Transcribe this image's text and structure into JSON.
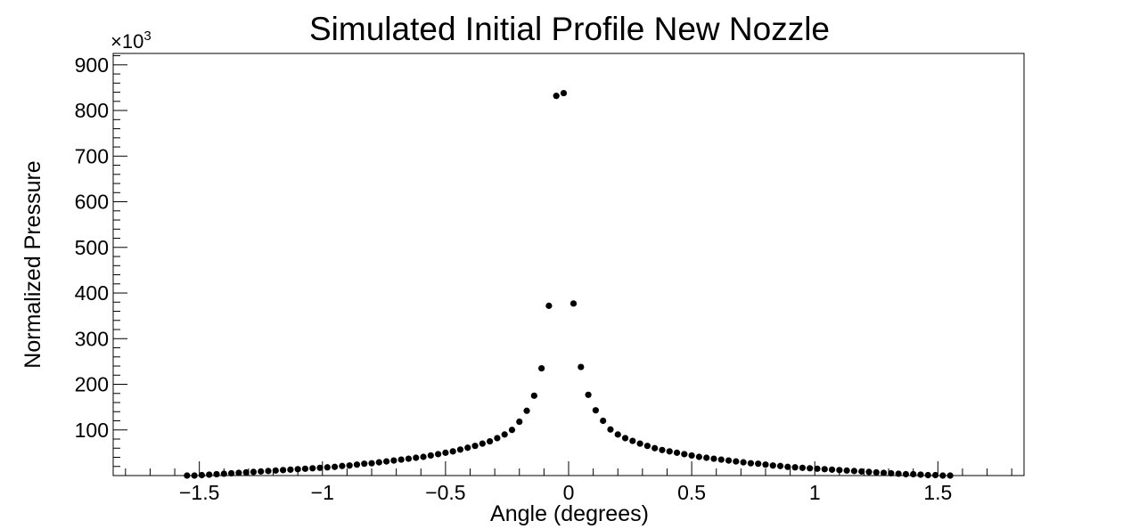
{
  "chart_data": {
    "type": "scatter",
    "title": "Simulated Initial Profile New Nozzle",
    "xlabel": "Angle (degrees)",
    "ylabel": "Normalized Pressure",
    "y_multiplier_label": "×10",
    "y_multiplier_exponent": "3",
    "xlim": [
      -1.85,
      1.85
    ],
    "ylim": [
      0,
      925
    ],
    "x_ticks": [
      -1.5,
      -1,
      -0.5,
      0,
      0.5,
      1,
      1.5
    ],
    "x_tick_labels": [
      "−1.5",
      "−1",
      "−0.5",
      "0",
      "0.5",
      "1",
      "1.5"
    ],
    "y_ticks": [
      100,
      200,
      300,
      400,
      500,
      600,
      700,
      800,
      900
    ],
    "y_tick_labels": [
      "100",
      "200",
      "300",
      "400",
      "500",
      "600",
      "700",
      "800",
      "900"
    ],
    "grid": false,
    "marker_color": "#000000",
    "series": [
      {
        "x": [
          -1.55,
          -1.52,
          -1.49,
          -1.46,
          -1.43,
          -1.4,
          -1.37,
          -1.34,
          -1.31,
          -1.28,
          -1.25,
          -1.22,
          -1.19,
          -1.16,
          -1.13,
          -1.1,
          -1.07,
          -1.04,
          -1.01,
          -0.98,
          -0.95,
          -0.92,
          -0.89,
          -0.86,
          -0.83,
          -0.8,
          -0.77,
          -0.74,
          -0.71,
          -0.68,
          -0.65,
          -0.62,
          -0.59,
          -0.56,
          -0.53,
          -0.5,
          -0.47,
          -0.44,
          -0.41,
          -0.38,
          -0.35,
          -0.32,
          -0.29,
          -0.26,
          -0.23,
          -0.2,
          -0.17,
          -0.14,
          -0.11,
          -0.08,
          -0.05,
          -0.02,
          0.02,
          0.05,
          0.08,
          0.11,
          0.14,
          0.17,
          0.2,
          0.23,
          0.26,
          0.29,
          0.32,
          0.35,
          0.38,
          0.41,
          0.44,
          0.47,
          0.5,
          0.53,
          0.56,
          0.59,
          0.62,
          0.65,
          0.68,
          0.71,
          0.74,
          0.77,
          0.8,
          0.83,
          0.86,
          0.89,
          0.92,
          0.95,
          0.98,
          1.01,
          1.04,
          1.07,
          1.1,
          1.13,
          1.16,
          1.19,
          1.22,
          1.25,
          1.28,
          1.31,
          1.34,
          1.37,
          1.4,
          1.43,
          1.46,
          1.49,
          1.52,
          1.55
        ],
        "y": [
          0,
          0,
          1,
          2,
          3,
          4,
          5,
          6,
          7,
          8,
          9,
          10,
          11,
          12,
          13,
          14,
          15,
          16,
          17,
          18,
          19,
          21,
          22,
          24,
          26,
          27,
          29,
          31,
          33,
          35,
          37,
          39,
          41,
          44,
          47,
          50,
          53,
          57,
          61,
          65,
          70,
          75,
          82,
          90,
          100,
          118,
          142,
          175,
          235,
          372,
          832,
          838,
          377,
          238,
          177,
          143,
          120,
          101,
          90,
          82,
          76,
          70,
          65,
          60,
          56,
          53,
          50,
          47,
          44,
          41,
          39,
          37,
          35,
          33,
          31,
          29,
          27,
          26,
          24,
          22,
          21,
          19,
          18,
          17,
          16,
          15,
          14,
          13,
          12,
          11,
          10,
          9,
          8,
          7,
          6,
          5,
          4,
          3,
          3,
          2,
          1,
          1,
          0,
          0
        ]
      }
    ]
  }
}
